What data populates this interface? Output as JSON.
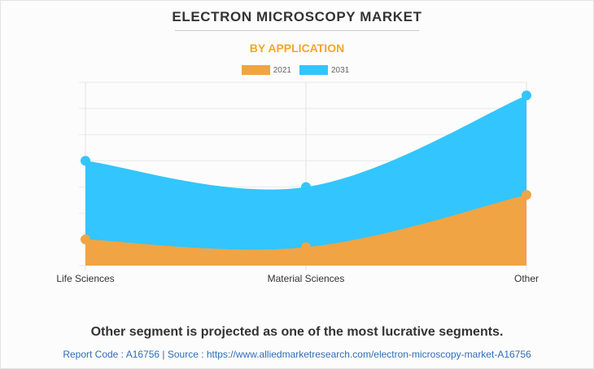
{
  "chart_data": {
    "type": "area",
    "title": "ELECTRON MICROSCOPY MARKET",
    "subtitle": "BY APPLICATION",
    "categories": [
      "Life Sciences",
      "Material Sciences",
      "Other"
    ],
    "series": [
      {
        "name": "2021",
        "values": [
          1.0,
          0.7,
          2.7
        ],
        "color": "#f0a444"
      },
      {
        "name": "2031",
        "values": [
          4.0,
          3.0,
          6.5
        ],
        "color": "#33c5fd"
      }
    ],
    "xlabel": "",
    "ylabel": "",
    "ylim": [
      0,
      7
    ],
    "grid": true,
    "legend": "top-center"
  },
  "headline": "Other segment is projected as one of the most lucrative segments.",
  "source": "Report Code : A16756  |  Source : https://www.alliedmarketresearch.com/electron-microscopy-market-A16756"
}
